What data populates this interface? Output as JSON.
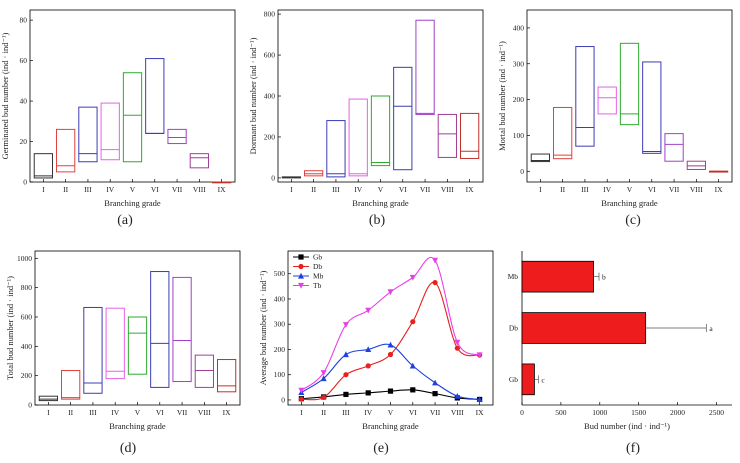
{
  "panel_labels": [
    "(a)",
    "(b)",
    "(c)",
    "(d)",
    "(e)",
    "(f)"
  ],
  "colors": {
    "I": "#333333",
    "II": "#e0413a",
    "III": "#3c3cb4",
    "IV": "#e860e8",
    "V": "#2eaa2e",
    "VI": "#3c3cb4",
    "VII": "#a040c8",
    "VIII": "#a03c96",
    "IX": "#c0302a",
    "Gb": "#000000",
    "Db": "#e82020",
    "Mb": "#2040e0",
    "Tb": "#e840e8",
    "bar": "#ee1c1c"
  },
  "chart_data": [
    {
      "id": "a",
      "type": "box",
      "xlabel": "Branching grade",
      "ylabel": "Germinated bud number (ind · ind⁻¹)",
      "categories": [
        "I",
        "II",
        "III",
        "IV",
        "V",
        "VI",
        "VII",
        "VIII",
        "IX"
      ],
      "ylim": [
        0,
        85
      ],
      "yticks": [
        0,
        20,
        40,
        60,
        80
      ],
      "boxes": [
        [
          2,
          3,
          14
        ],
        [
          5,
          8,
          26
        ],
        [
          10,
          14,
          37
        ],
        [
          11,
          16,
          39
        ],
        [
          10,
          33,
          54
        ],
        [
          24,
          24,
          61
        ],
        [
          19,
          22,
          26
        ],
        [
          7,
          12,
          14
        ],
        [
          0,
          0,
          0
        ]
      ]
    },
    {
      "id": "b",
      "type": "box",
      "xlabel": "Branching grade",
      "ylabel": "Dormant bud number (ind · ind⁻¹)",
      "categories": [
        "I",
        "II",
        "III",
        "IV",
        "V",
        "VI",
        "VII",
        "VIII",
        "IX"
      ],
      "ylim": [
        -20,
        820
      ],
      "yticks": [
        0,
        200,
        400,
        600,
        800
      ],
      "boxes": [
        [
          0,
          2,
          5
        ],
        [
          10,
          20,
          35
        ],
        [
          5,
          20,
          280
        ],
        [
          10,
          20,
          385
        ],
        [
          60,
          75,
          400
        ],
        [
          40,
          350,
          540
        ],
        [
          310,
          315,
          770
        ],
        [
          100,
          215,
          310
        ],
        [
          95,
          130,
          315
        ]
      ]
    },
    {
      "id": "c",
      "type": "box",
      "xlabel": "Branching grade",
      "ylabel": "Mortal bud number (ind · ind⁻¹)",
      "categories": [
        "I",
        "II",
        "III",
        "IV",
        "V",
        "VI",
        "VII",
        "VIII",
        "IX"
      ],
      "ylim": [
        -30,
        450
      ],
      "yticks": [
        0,
        100,
        200,
        300,
        400
      ],
      "boxes": [
        [
          27,
          30,
          48
        ],
        [
          35,
          45,
          178
        ],
        [
          70,
          122,
          348
        ],
        [
          160,
          205,
          235
        ],
        [
          130,
          160,
          357
        ],
        [
          50,
          55,
          305
        ],
        [
          28,
          75,
          105
        ],
        [
          5,
          15,
          28
        ],
        [
          0,
          0,
          0
        ]
      ]
    },
    {
      "id": "d",
      "type": "box",
      "xlabel": "Branching grade",
      "ylabel": "Total bud number (ind · ind⁻¹)",
      "categories": [
        "I",
        "II",
        "III",
        "IV",
        "V",
        "VI",
        "VII",
        "VIII",
        "IX"
      ],
      "ylim": [
        0,
        1050
      ],
      "yticks": [
        0,
        200,
        400,
        600,
        800,
        1000
      ],
      "boxes": [
        [
          30,
          40,
          60
        ],
        [
          40,
          50,
          235
        ],
        [
          80,
          150,
          665
        ],
        [
          180,
          230,
          660
        ],
        [
          210,
          490,
          600
        ],
        [
          120,
          420,
          910
        ],
        [
          160,
          440,
          870
        ],
        [
          120,
          235,
          340
        ],
        [
          90,
          130,
          310
        ]
      ]
    },
    {
      "id": "e",
      "type": "line",
      "xlabel": "Branching grade",
      "ylabel": "Average bud number (ind · ind⁻¹)",
      "categories": [
        "I",
        "II",
        "III",
        "IV",
        "V",
        "VI",
        "VII",
        "VIII",
        "IX"
      ],
      "ylim": [
        -20,
        590
      ],
      "yticks": [
        0,
        100,
        200,
        300,
        400,
        500
      ],
      "legend": "top-left",
      "series": [
        {
          "name": "Gb",
          "marker": "square",
          "values": [
            5,
            12,
            22,
            28,
            35,
            40,
            25,
            8,
            2
          ]
        },
        {
          "name": "Db",
          "marker": "circle",
          "values": [
            3,
            10,
            100,
            135,
            180,
            310,
            465,
            205,
            178
          ]
        },
        {
          "name": "Mb",
          "marker": "triangle-up",
          "values": [
            30,
            85,
            180,
            200,
            218,
            135,
            68,
            15,
            2
          ]
        },
        {
          "name": "Tb",
          "marker": "triangle-down",
          "values": [
            38,
            108,
            298,
            355,
            428,
            485,
            553,
            228,
            178
          ]
        }
      ]
    },
    {
      "id": "f",
      "type": "hbar",
      "xlabel": "Bud number (ind · ind⁻¹)",
      "categories": [
        "Gb",
        "Db",
        "Mb"
      ],
      "values": [
        160,
        1590,
        920
      ],
      "errors": [
        50,
        780,
        70
      ],
      "letters": [
        "c",
        "a",
        "b"
      ],
      "xlim": [
        0,
        2700
      ],
      "xticks": [
        0,
        500,
        1000,
        1500,
        2000,
        2500
      ]
    }
  ]
}
